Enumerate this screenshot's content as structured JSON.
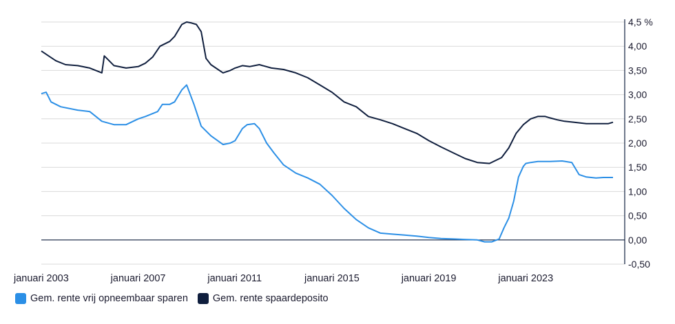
{
  "chart_data": {
    "type": "line",
    "y_unit": "%",
    "ylim": [
      -0.5,
      4.5
    ],
    "y_ticks": [
      "-0,50",
      "0,00",
      "0,50",
      "1,00",
      "1,50",
      "2,00",
      "2,50",
      "3,00",
      "3,50",
      "4,00",
      "4,5 %"
    ],
    "y_tick_values": [
      -0.5,
      0,
      0.5,
      1,
      1.5,
      2,
      2.5,
      3,
      3.5,
      4,
      4.5
    ],
    "x_tick_labels": [
      "januari 2003",
      "januari 2007",
      "januari 2011",
      "januari 2015",
      "januari 2019",
      "januari 2023"
    ],
    "x_tick_values": [
      2003,
      2007,
      2011,
      2015,
      2019,
      2023
    ],
    "xlim": [
      2003,
      2026.8
    ],
    "grid": true,
    "legend_position": "bottom-left",
    "series": [
      {
        "name": "Gem. rente vrij opneembaar sparen",
        "color": "#2b8fe6",
        "x": [
          2003.0,
          2003.2,
          2003.4,
          2003.8,
          2004.5,
          2005.0,
          2005.5,
          2006.0,
          2006.5,
          2007.0,
          2007.3,
          2007.8,
          2008.0,
          2008.3,
          2008.5,
          2008.8,
          2009.0,
          2009.3,
          2009.6,
          2010.0,
          2010.5,
          2010.8,
          2011.0,
          2011.3,
          2011.5,
          2011.8,
          2012.0,
          2012.3,
          2012.6,
          2013.0,
          2013.5,
          2014.0,
          2014.5,
          2015.0,
          2015.5,
          2016.0,
          2016.5,
          2017.0,
          2017.5,
          2018.0,
          2018.5,
          2019.0,
          2019.5,
          2020.0,
          2020.5,
          2021.0,
          2021.3,
          2021.6,
          2021.9,
          2022.1,
          2022.3,
          2022.5,
          2022.7,
          2022.9,
          2023.0,
          2023.2,
          2023.5,
          2024.0,
          2024.5,
          2024.9,
          2025.2,
          2025.5,
          2025.9,
          2026.2,
          2026.6
        ],
        "y": [
          3.02,
          3.05,
          2.85,
          2.75,
          2.68,
          2.65,
          2.45,
          2.38,
          2.38,
          2.5,
          2.55,
          2.65,
          2.8,
          2.8,
          2.85,
          3.1,
          3.2,
          2.8,
          2.35,
          2.15,
          1.97,
          2.0,
          2.05,
          2.3,
          2.38,
          2.4,
          2.3,
          2.0,
          1.8,
          1.55,
          1.38,
          1.28,
          1.15,
          0.92,
          0.65,
          0.42,
          0.25,
          0.14,
          0.12,
          0.1,
          0.08,
          0.05,
          0.03,
          0.02,
          0.01,
          0.0,
          -0.04,
          -0.04,
          0.02,
          0.25,
          0.45,
          0.8,
          1.3,
          1.52,
          1.58,
          1.6,
          1.62,
          1.62,
          1.63,
          1.6,
          1.35,
          1.3,
          1.28,
          1.29,
          1.29
        ]
      },
      {
        "name": "Gem. rente spaardeposito",
        "color": "#0f1e3d",
        "x": [
          2003.0,
          2003.3,
          2003.6,
          2004.0,
          2004.5,
          2005.0,
          2005.5,
          2005.6,
          2005.7,
          2006.0,
          2006.5,
          2007.0,
          2007.3,
          2007.6,
          2007.9,
          2008.3,
          2008.5,
          2008.8,
          2009.0,
          2009.2,
          2009.4,
          2009.6,
          2009.8,
          2010.0,
          2010.5,
          2010.8,
          2011.0,
          2011.3,
          2011.6,
          2011.8,
          2012.0,
          2012.5,
          2013.0,
          2013.5,
          2014.0,
          2014.5,
          2015.0,
          2015.5,
          2016.0,
          2016.5,
          2017.0,
          2017.5,
          2018.0,
          2018.5,
          2019.0,
          2019.5,
          2020.0,
          2020.5,
          2021.0,
          2021.5,
          2022.0,
          2022.3,
          2022.6,
          2022.9,
          2023.2,
          2023.5,
          2023.8,
          2024.0,
          2024.3,
          2024.6,
          2025.0,
          2025.5,
          2026.0,
          2026.4,
          2026.6
        ],
        "y": [
          3.9,
          3.8,
          3.7,
          3.62,
          3.6,
          3.55,
          3.45,
          3.8,
          3.75,
          3.6,
          3.55,
          3.58,
          3.65,
          3.78,
          4.0,
          4.1,
          4.2,
          4.45,
          4.5,
          4.48,
          4.45,
          4.3,
          3.75,
          3.62,
          3.45,
          3.5,
          3.55,
          3.6,
          3.58,
          3.6,
          3.62,
          3.55,
          3.52,
          3.45,
          3.35,
          3.2,
          3.05,
          2.85,
          2.75,
          2.55,
          2.48,
          2.4,
          2.3,
          2.2,
          2.05,
          1.92,
          1.8,
          1.68,
          1.6,
          1.58,
          1.7,
          1.9,
          2.2,
          2.38,
          2.5,
          2.55,
          2.55,
          2.52,
          2.48,
          2.45,
          2.43,
          2.4,
          2.4,
          2.4,
          2.43
        ]
      }
    ]
  }
}
